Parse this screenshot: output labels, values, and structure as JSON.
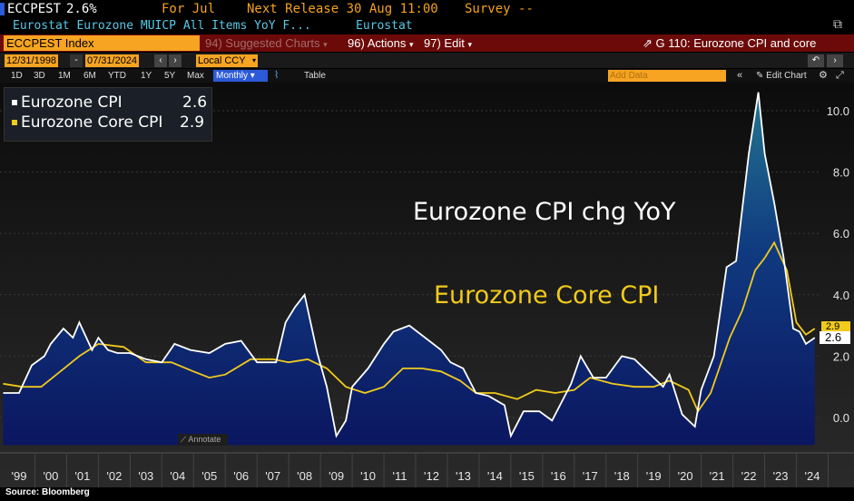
{
  "header": {
    "ticker": "ECCPEST",
    "value": "2.6%",
    "for_label": "For Jul",
    "next_release": "Next Release 30 Aug 11:00",
    "survey": "Survey --",
    "description": "Eurostat Eurozone MUICP All Items YoY F...",
    "source_name": "Eurostat"
  },
  "toolbar": {
    "index_field": "ECCPEST Index",
    "suggested": "Suggested Charts",
    "suggested_num": "94)",
    "actions": "Actions",
    "actions_num": "96)",
    "edit": "Edit",
    "edit_num": "97)",
    "chart_title": "G 110: Eurozone CPI and core"
  },
  "dates": {
    "start": "12/31/1998",
    "end": "07/31/2024",
    "currency": "Local CCY"
  },
  "ranges": [
    "1D",
    "3D",
    "1M",
    "6M",
    "YTD",
    "1Y",
    "5Y",
    "Max"
  ],
  "frequency": "Monthly",
  "table_label": "Table",
  "add_data_placeholder": "Add Data",
  "edit_chart": "Edit Chart",
  "annotate": "Annotate",
  "source": "Source: Bloomberg",
  "colors": {
    "cpi_line": "#ffffff",
    "core_line": "#f1ca1c",
    "area_top": "#1d6a86",
    "area_bottom": "#0a1a6e"
  },
  "chart_data": {
    "type": "line",
    "title": "Eurozone CPI chg YoY",
    "subtitle": "Eurozone Core CPI",
    "legend": [
      {
        "name": "Eurozone CPI",
        "value": "2.6"
      },
      {
        "name": "Eurozone Core CPI",
        "value": "2.9"
      }
    ],
    "last_values": {
      "cpi": "2.6",
      "core": "2.9"
    },
    "x_ticks": [
      "'99",
      "'00",
      "'01",
      "'02",
      "'03",
      "'04",
      "'05",
      "'06",
      "'07",
      "'08",
      "'09",
      "'10",
      "'11",
      "'12",
      "'13",
      "'14",
      "'15",
      "'16",
      "'17",
      "'18",
      "'19",
      "'20",
      "'21",
      "'22",
      "'23",
      "'24"
    ],
    "y_ticks": [
      "0.0",
      "2.0",
      "4.0",
      "6.0",
      "8.0",
      "10.0"
    ],
    "ylim": [
      -1,
      11.2
    ],
    "xlim": [
      1998.9,
      2024.7
    ],
    "series": [
      {
        "name": "Eurozone CPI",
        "x": [
          1999.0,
          1999.5,
          1999.9,
          2000.3,
          2000.5,
          2000.9,
          2001.2,
          2001.4,
          2001.8,
          2002.0,
          2002.3,
          2002.6,
          2003.0,
          2003.5,
          2004.0,
          2004.4,
          2004.9,
          2005.5,
          2006.0,
          2006.5,
          2007.0,
          2007.6,
          2007.9,
          2008.2,
          2008.5,
          2008.9,
          2009.2,
          2009.5,
          2009.8,
          2010.0,
          2010.5,
          2011.0,
          2011.3,
          2011.8,
          2012.3,
          2012.8,
          2013.1,
          2013.5,
          2013.9,
          2014.3,
          2014.8,
          2015.0,
          2015.4,
          2015.9,
          2016.3,
          2016.9,
          2017.2,
          2017.6,
          2018.0,
          2018.5,
          2018.9,
          2019.3,
          2019.8,
          2020.0,
          2020.4,
          2020.8,
          2021.0,
          2021.4,
          2021.8,
          2022.1,
          2022.5,
          2022.8,
          2023.0,
          2023.3,
          2023.6,
          2023.9,
          2024.1,
          2024.3,
          2024.58
        ],
        "y": [
          0.8,
          0.8,
          1.7,
          2.0,
          2.4,
          2.9,
          2.6,
          3.1,
          2.2,
          2.6,
          2.2,
          2.1,
          2.1,
          1.9,
          1.8,
          2.4,
          2.2,
          2.1,
          2.4,
          2.5,
          1.8,
          1.8,
          3.1,
          3.6,
          4.0,
          2.1,
          1.0,
          -0.6,
          -0.1,
          1.0,
          1.6,
          2.4,
          2.8,
          3.0,
          2.6,
          2.2,
          1.8,
          1.6,
          0.8,
          0.7,
          0.4,
          -0.6,
          0.2,
          0.2,
          -0.1,
          1.1,
          2.0,
          1.3,
          1.3,
          2.0,
          1.9,
          1.5,
          1.0,
          1.4,
          0.1,
          -0.3,
          0.9,
          2.0,
          4.9,
          5.1,
          8.6,
          10.6,
          8.6,
          7.0,
          5.2,
          2.9,
          2.8,
          2.4,
          2.6
        ]
      },
      {
        "name": "Eurozone Core CPI",
        "x": [
          1999.0,
          1999.6,
          2000.2,
          2000.8,
          2001.4,
          2002.0,
          2002.8,
          2003.5,
          2004.3,
          2005.0,
          2005.5,
          2006.0,
          2006.8,
          2007.5,
          2008.0,
          2008.6,
          2009.2,
          2009.8,
          2010.4,
          2011.0,
          2011.6,
          2012.2,
          2012.8,
          2013.4,
          2013.9,
          2014.5,
          2015.2,
          2015.8,
          2016.4,
          2017.0,
          2017.5,
          2018.2,
          2018.9,
          2019.5,
          2020.0,
          2020.6,
          2020.9,
          2021.3,
          2021.9,
          2022.3,
          2022.7,
          2023.0,
          2023.3,
          2023.7,
          2024.0,
          2024.3,
          2024.58
        ],
        "y": [
          1.1,
          1.0,
          1.0,
          1.5,
          2.0,
          2.4,
          2.3,
          1.8,
          1.8,
          1.5,
          1.3,
          1.4,
          1.9,
          1.9,
          1.8,
          1.9,
          1.6,
          1.0,
          0.8,
          1.0,
          1.6,
          1.6,
          1.5,
          1.2,
          0.8,
          0.8,
          0.6,
          0.9,
          0.8,
          0.9,
          1.3,
          1.1,
          1.0,
          1.0,
          1.2,
          0.9,
          0.2,
          0.8,
          2.6,
          3.5,
          4.8,
          5.2,
          5.7,
          4.8,
          3.1,
          2.7,
          2.9
        ]
      }
    ]
  }
}
